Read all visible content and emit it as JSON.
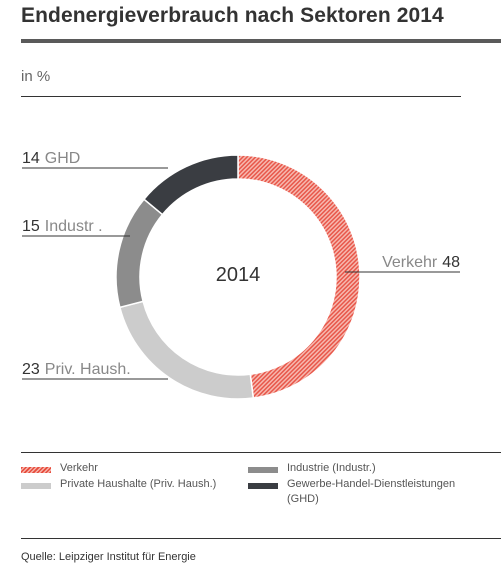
{
  "title": "Endenergieverbrauch nach Sektoren 2014",
  "unit_label": "in %",
  "source": "Quelle: Leipziger Institut für Energie",
  "colors": {
    "verkehr": "#e8574a",
    "private": "#cccccc",
    "industrie": "#8c8c8c",
    "ghd": "#3a3d42"
  },
  "chart_data": {
    "type": "pie",
    "center_label": "2014",
    "slices": [
      {
        "key": "verkehr",
        "value": 48,
        "label": "Verkehr",
        "value_text": "48"
      },
      {
        "key": "private",
        "value": 23,
        "label": "Priv. Haush.",
        "value_text": "23"
      },
      {
        "key": "industrie",
        "value": 15,
        "label": "Industr .",
        "value_text": "15"
      },
      {
        "key": "ghd",
        "value": 14,
        "label": "GHD",
        "value_text": "14"
      }
    ]
  },
  "legend": [
    {
      "key": "verkehr",
      "text": "Verkehr"
    },
    {
      "key": "private",
      "text": "Private Haushalte (Priv. Haush.)"
    },
    {
      "key": "industrie",
      "text": "Industrie (Industr.)"
    },
    {
      "key": "ghd",
      "text": "Gewerbe-Handel-Dienstleistungen (GHD)"
    }
  ]
}
